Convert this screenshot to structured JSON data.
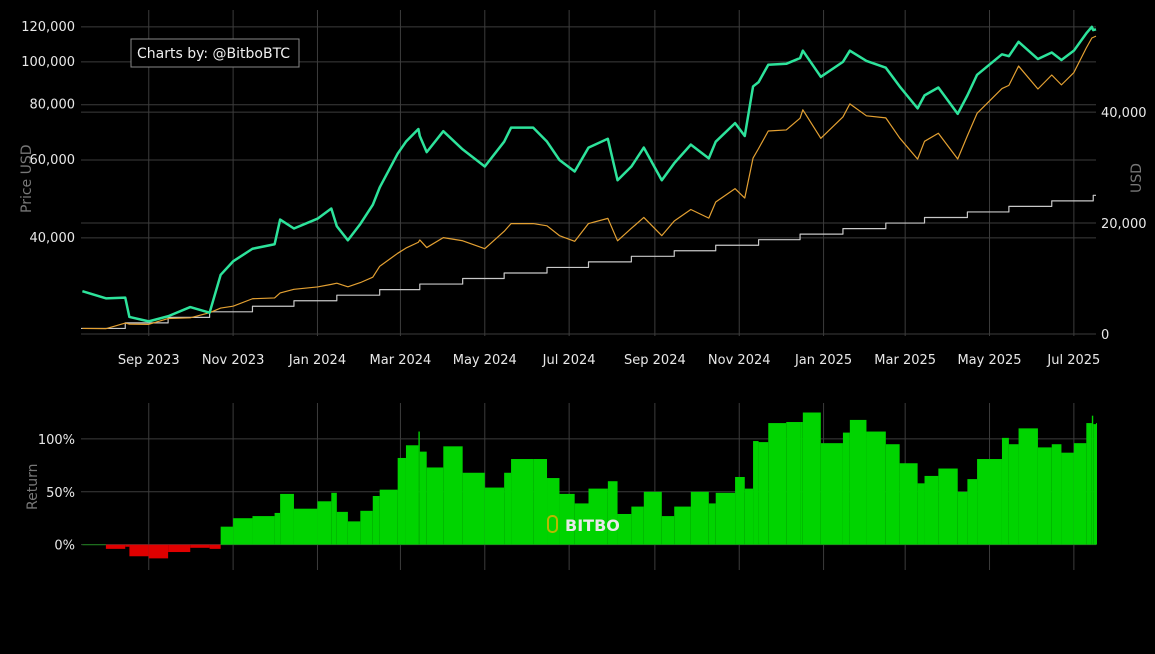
{
  "chart_data": [
    {
      "type": "line",
      "ylabel_left": "Price USD",
      "ylabel_right": "USD",
      "annotation": "Charts by: @BitboBTC",
      "y_left_scale": "log",
      "y_left_range": [
        24000,
        131000
      ],
      "y_left_ticks": [
        40000,
        60000,
        80000,
        100000,
        120000
      ],
      "y_left_tick_labels": [
        "40,000",
        "60,000",
        "80,000",
        "100,000",
        "120,000"
      ],
      "y_right_range": [
        -360,
        58400
      ],
      "y_right_ticks": [
        0,
        20000,
        40000
      ],
      "y_right_tick_labels": [
        "0",
        "20,000",
        "40,000"
      ],
      "x_range": [
        "2023-07-14",
        "2025-07-17"
      ],
      "x_ticks": [
        "2023-09-01",
        "2023-11-01",
        "2024-01-01",
        "2024-03-01",
        "2024-05-01",
        "2024-07-01",
        "2024-09-01",
        "2024-11-01",
        "2025-01-01",
        "2025-03-01",
        "2025-05-01",
        "2025-07-01"
      ],
      "x_tick_labels": [
        "Sep 2023",
        "Nov 2023",
        "Jan 2024",
        "Mar 2024",
        "May 2024",
        "Jul 2024",
        "Sep 2024",
        "Nov 2024",
        "Jan 2025",
        "Mar 2025",
        "May 2025",
        "Jul 2025"
      ],
      "grid": true,
      "colors": {
        "price": "#2de39b",
        "value": "#e3a032",
        "invested": "#c8c8c8"
      },
      "dates": [
        "2023-07-15",
        "2023-08-01",
        "2023-08-15",
        "2023-08-18",
        "2023-09-01",
        "2023-09-15",
        "2023-10-01",
        "2023-10-15",
        "2023-10-23",
        "2023-11-01",
        "2023-11-15",
        "2023-12-01",
        "2023-12-05",
        "2023-12-15",
        "2024-01-01",
        "2024-01-11",
        "2024-01-15",
        "2024-01-23",
        "2024-02-01",
        "2024-02-10",
        "2024-02-15",
        "2024-02-28",
        "2024-03-05",
        "2024-03-14",
        "2024-03-15",
        "2024-03-20",
        "2024-04-01",
        "2024-04-15",
        "2024-05-01",
        "2024-05-15",
        "2024-05-20",
        "2024-06-05",
        "2024-06-15",
        "2024-06-24",
        "2024-07-05",
        "2024-07-15",
        "2024-07-29",
        "2024-08-05",
        "2024-08-15",
        "2024-08-24",
        "2024-09-06",
        "2024-09-15",
        "2024-09-27",
        "2024-10-10",
        "2024-10-15",
        "2024-10-29",
        "2024-11-05",
        "2024-11-11",
        "2024-11-15",
        "2024-11-22",
        "2024-12-05",
        "2024-12-15",
        "2024-12-17",
        "2024-12-30",
        "2025-01-15",
        "2025-01-20",
        "2025-02-01",
        "2025-02-15",
        "2025-02-25",
        "2025-03-10",
        "2025-03-15",
        "2025-03-25",
        "2025-04-08",
        "2025-04-15",
        "2025-04-22",
        "2025-05-10",
        "2025-05-15",
        "2025-05-22",
        "2025-06-05",
        "2025-06-15",
        "2025-06-22",
        "2025-07-01",
        "2025-07-10",
        "2025-07-14",
        "2025-07-15",
        "2025-07-17"
      ],
      "series": [
        {
          "key": "price",
          "axis": "left",
          "values": [
            30300,
            29200,
            29300,
            26500,
            25900,
            26600,
            27900,
            27100,
            33000,
            35400,
            37800,
            38700,
            44000,
            42000,
            44200,
            46600,
            42500,
            39500,
            43000,
            47500,
            52000,
            62000,
            66000,
            70500,
            68000,
            62500,
            69700,
            63400,
            58000,
            66000,
            71000,
            71000,
            66000,
            60000,
            56500,
            64000,
            67000,
            54000,
            58000,
            64000,
            54000,
            59000,
            65000,
            60500,
            66000,
            72700,
            68000,
            88000,
            90000,
            98500,
            99000,
            102000,
            106000,
            92500,
            100000,
            106000,
            100500,
            97000,
            88000,
            78500,
            84000,
            87500,
            76300,
            84000,
            93500,
            104000,
            103000,
            111000,
            101500,
            105000,
            101000,
            106000,
            116000,
            120000,
            118000,
            118500
          ]
        },
        {
          "key": "value",
          "axis": "right",
          "values": [
            1000,
            964,
            1966,
            1778,
            1738,
            2785,
            2921,
            3837,
            4673,
            5013,
            6354,
            6505,
            7396,
            8060,
            8482,
            8943,
            9155,
            8508,
            9262,
            10232,
            12199,
            14545,
            15484,
            16539,
            16952,
            15581,
            17376,
            16807,
            15376,
            18500,
            19901,
            19901,
            19503,
            17730,
            16696,
            19910,
            20844,
            16799,
            19041,
            21011,
            17728,
            20367,
            22438,
            20885,
            23786,
            26201,
            24507,
            31715,
            33435,
            36593,
            36779,
            38893,
            40418,
            35270,
            39130,
            41478,
            39326,
            38955,
            35341,
            31526,
            34734,
            36181,
            31550,
            35734,
            39775,
            44242,
            44815,
            48296,
            44163,
            46683,
            44905,
            47128,
            51574,
            53352,
            53466,
            53692
          ]
        },
        {
          "key": "invested",
          "axis": "right",
          "values": [
            1000,
            1000,
            2000,
            2000,
            2000,
            3000,
            3000,
            4000,
            4000,
            4000,
            5000,
            5000,
            5000,
            6000,
            6000,
            6000,
            7000,
            7000,
            7000,
            7000,
            8000,
            8000,
            8000,
            8000,
            9000,
            9000,
            9000,
            10000,
            10000,
            11000,
            11000,
            11000,
            12000,
            12000,
            12000,
            13000,
            13000,
            13000,
            14000,
            14000,
            14000,
            15000,
            15000,
            15000,
            16000,
            16000,
            16000,
            16000,
            17000,
            17000,
            17000,
            18000,
            18000,
            18000,
            19000,
            19000,
            19000,
            20000,
            20000,
            20000,
            21000,
            21000,
            21000,
            22000,
            22000,
            22000,
            23000,
            23000,
            23000,
            24000,
            24000,
            24000,
            24000,
            24000,
            25000,
            25000
          ]
        }
      ]
    },
    {
      "type": "bar",
      "ylabel": "Return",
      "y_range": [
        -24,
        134
      ],
      "y_ticks": [
        0,
        50,
        100
      ],
      "y_tick_labels": [
        "0%",
        "50%",
        "100%"
      ],
      "grid": true,
      "colors": {
        "positive": "#00d400",
        "negative": "#e00000"
      },
      "watermark": "BITBO",
      "values_pct": [
        0,
        -4,
        -2,
        -11,
        -13,
        -7,
        -3,
        -4,
        17,
        25,
        27,
        30,
        48,
        34,
        41,
        49,
        31,
        22,
        32,
        46,
        52,
        82,
        94,
        107,
        88,
        73,
        93,
        68,
        54,
        68,
        81,
        81,
        63,
        48,
        39,
        53,
        60,
        29,
        36,
        50,
        27,
        36,
        50,
        39,
        49,
        64,
        53,
        98,
        97,
        115,
        116,
        116,
        125,
        96,
        106,
        118,
        107,
        95,
        77,
        58,
        65,
        72,
        50,
        62,
        81,
        101,
        95,
        110,
        92,
        95,
        87,
        96,
        115,
        122,
        114,
        115
      ]
    }
  ]
}
